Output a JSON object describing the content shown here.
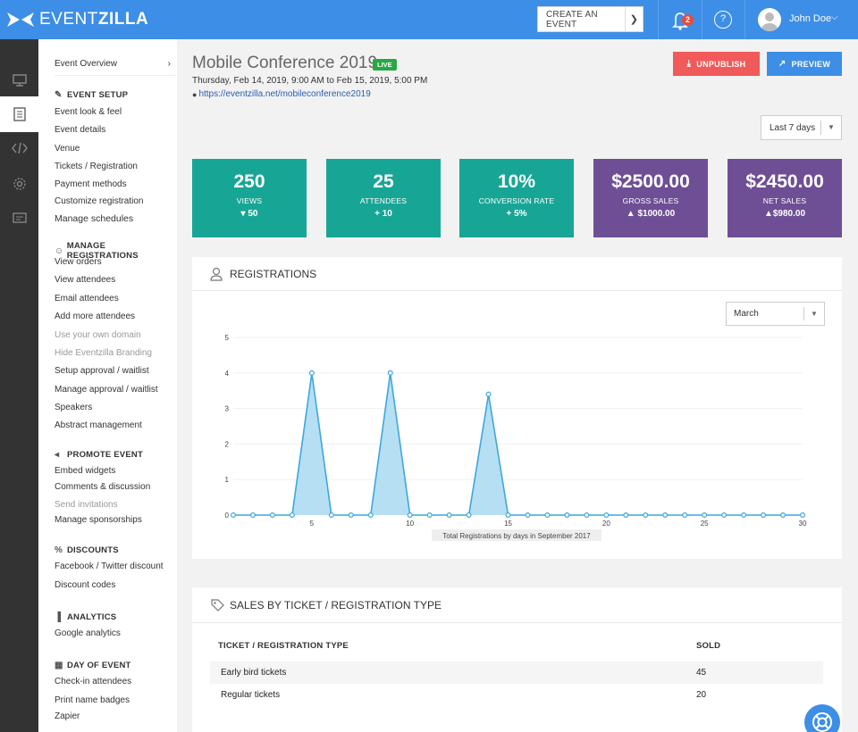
{
  "app": {
    "logo_thin": "EVENT",
    "logo_bold": "ZILLA",
    "create_event_label": "CREATE AN EVENT",
    "notification_count": "2",
    "help_glyph": "?",
    "user_name": "John Doe",
    "accent_color": "#3d8ee6"
  },
  "rail": {
    "items": [
      {
        "icon": "monitor-icon"
      },
      {
        "icon": "calendar-list-icon",
        "active": true
      },
      {
        "icon": "code-icon"
      },
      {
        "icon": "gear-icon"
      },
      {
        "icon": "ticket-icon"
      }
    ]
  },
  "sidebar": {
    "overview_label": "Event Overview",
    "sections": [
      {
        "title": "EVENT SETUP",
        "icon": "edit-icon",
        "links": [
          {
            "label": "Event look & feel"
          },
          {
            "label": "Event details"
          },
          {
            "label": "Venue"
          },
          {
            "label": "Tickets / Registration"
          },
          {
            "label": "Payment methods"
          },
          {
            "label": "Customize registration"
          },
          {
            "label": "Manage schedules"
          }
        ]
      },
      {
        "title": "MANAGE REGISTRATIONS",
        "icon": "user-icon",
        "links": [
          {
            "label": "View orders"
          },
          {
            "label": "View attendees"
          },
          {
            "label": "Email attendees"
          },
          {
            "label": "Add more attendees"
          },
          {
            "label": "Use your own domain",
            "muted": true
          },
          {
            "label": "Hide Eventzilla Branding",
            "muted": true
          },
          {
            "label": "Setup approval / waitlist"
          },
          {
            "label": "Manage approval / waitlist"
          },
          {
            "label": "Speakers"
          },
          {
            "label": "Abstract management"
          }
        ]
      },
      {
        "title": "PROMOTE EVENT",
        "icon": "megaphone-icon",
        "links": [
          {
            "label": "Embed widgets"
          },
          {
            "label": "Comments & discussion"
          },
          {
            "label": "Send invitations",
            "muted": true
          },
          {
            "label": "Manage sponsorships"
          }
        ]
      },
      {
        "title": "DISCOUNTS",
        "icon": "percent-icon",
        "links": [
          {
            "label": "Facebook / Twitter discount"
          },
          {
            "label": "Discount codes"
          }
        ]
      },
      {
        "title": "ANALYTICS",
        "icon": "bar-chart-icon",
        "links": [
          {
            "label": "Google analytics"
          }
        ]
      },
      {
        "title": "DAY OF EVENT",
        "icon": "calendar-icon",
        "links": [
          {
            "label": "Check-in attendees"
          },
          {
            "label": "Print name badges"
          },
          {
            "label": "Zapier"
          }
        ]
      }
    ]
  },
  "event": {
    "title": "Mobile Conference 2019",
    "status": "LIVE",
    "date_range": "Thursday, Feb 14, 2019, 9:00 AM to Feb 15, 2019, 5:00 PM",
    "url": "https://eventzilla.net/mobileconference2019",
    "unpublish_label": "UNPUBLISH",
    "preview_label": "PREVIEW",
    "range_label": "Last 7 days"
  },
  "stats": [
    {
      "value": "250",
      "label": "VIEWS",
      "change": "▾ 50",
      "color": "#17a696"
    },
    {
      "value": "25",
      "label": "ATTENDEES",
      "change": "+ 10",
      "color": "#17a696"
    },
    {
      "value": "10%",
      "label": "CONVERSION RATE",
      "change": "+ 5%",
      "color": "#17a696"
    },
    {
      "value": "$2500.00",
      "label": "GROSS SALES",
      "change": "▲ $1000.00",
      "color": "#6e4f96"
    },
    {
      "value": "$2450.00",
      "label": "NET SALES",
      "change": "▲$980.00",
      "color": "#6e4f96"
    }
  ],
  "registrations": {
    "title": "REGISTRATIONS",
    "month_label": "March"
  },
  "chart_data": {
    "type": "area",
    "title": "",
    "xlabel": "Total Registrations by days in September 2017",
    "ylabel": "",
    "x": [
      1,
      2,
      3,
      4,
      5,
      6,
      7,
      8,
      9,
      10,
      11,
      12,
      13,
      14,
      15,
      16,
      17,
      18,
      19,
      20,
      21,
      22,
      23,
      24,
      25,
      26,
      27,
      28,
      29,
      30
    ],
    "values": [
      0,
      0,
      0,
      0,
      4,
      0,
      0,
      0,
      4,
      0,
      0,
      0,
      0,
      3.4,
      0,
      0,
      0,
      0,
      0,
      0,
      0,
      0,
      0,
      0,
      0,
      0,
      0,
      0,
      0,
      0
    ],
    "xticks": [
      5,
      10,
      15,
      20,
      25,
      30
    ],
    "yticks": [
      0,
      1,
      2,
      3,
      4,
      5
    ],
    "xlim": [
      1,
      30
    ],
    "ylim": [
      0,
      5
    ],
    "grid": true,
    "color": "#3da7dc"
  },
  "sales": {
    "title": "SALES BY TICKET / REGISTRATION TYPE",
    "col_type": "TICKET / REGISTRATION TYPE",
    "col_sold": "SOLD",
    "rows": [
      {
        "type": "Early bird tickets",
        "sold": "45"
      },
      {
        "type": "Regular tickets",
        "sold": "20"
      }
    ]
  }
}
